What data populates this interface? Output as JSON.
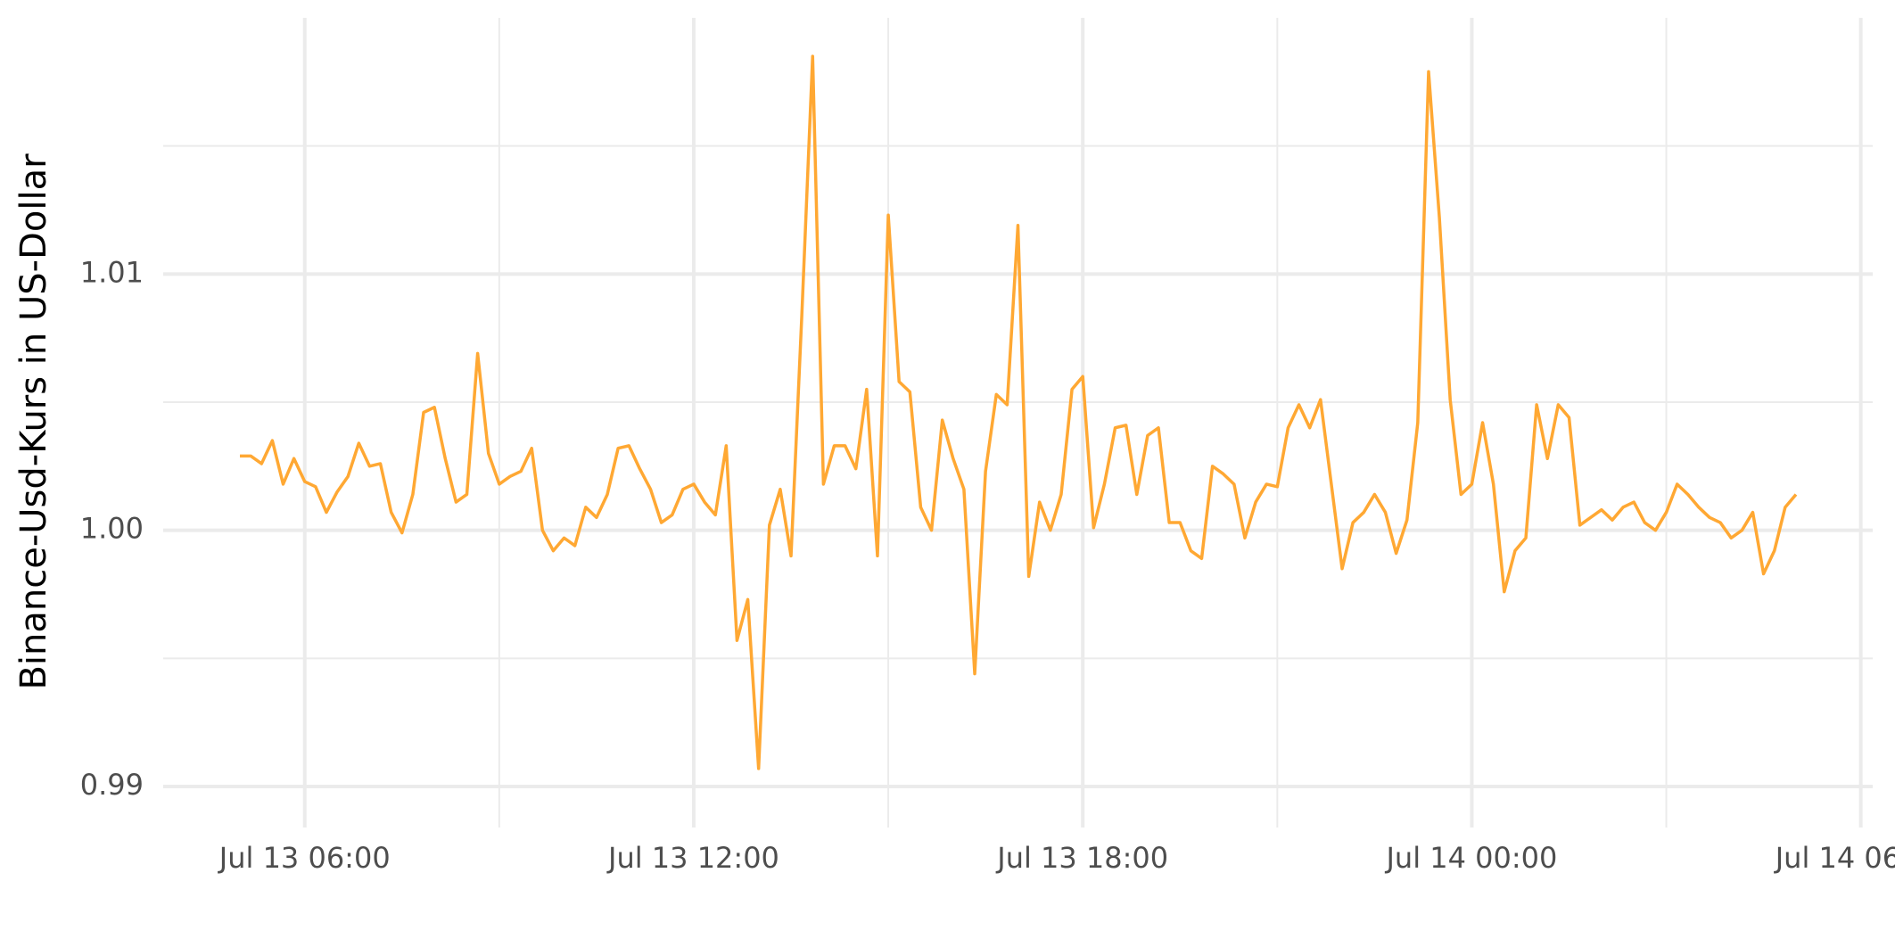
{
  "chart_data": {
    "type": "line",
    "y_label": "Binance-Usd-Kurs in US-Dollar",
    "x": [
      "Jul 13 05:00",
      "Jul 13 05:10",
      "Jul 13 05:20",
      "Jul 13 05:30",
      "Jul 13 05:40",
      "Jul 13 05:50",
      "Jul 13 06:00",
      "Jul 13 06:10",
      "Jul 13 06:20",
      "Jul 13 06:30",
      "Jul 13 06:40",
      "Jul 13 06:50",
      "Jul 13 07:00",
      "Jul 13 07:10",
      "Jul 13 07:20",
      "Jul 13 07:30",
      "Jul 13 07:40",
      "Jul 13 07:50",
      "Jul 13 08:00",
      "Jul 13 08:10",
      "Jul 13 08:20",
      "Jul 13 08:30",
      "Jul 13 08:40",
      "Jul 13 08:50",
      "Jul 13 09:00",
      "Jul 13 09:10",
      "Jul 13 09:20",
      "Jul 13 09:30",
      "Jul 13 09:40",
      "Jul 13 09:50",
      "Jul 13 10:00",
      "Jul 13 10:10",
      "Jul 13 10:20",
      "Jul 13 10:30",
      "Jul 13 10:40",
      "Jul 13 10:50",
      "Jul 13 11:00",
      "Jul 13 11:10",
      "Jul 13 11:20",
      "Jul 13 11:30",
      "Jul 13 11:40",
      "Jul 13 11:50",
      "Jul 13 12:00",
      "Jul 13 12:10",
      "Jul 13 12:20",
      "Jul 13 12:30",
      "Jul 13 12:40",
      "Jul 13 12:50",
      "Jul 13 13:00",
      "Jul 13 13:10",
      "Jul 13 13:20",
      "Jul 13 13:30",
      "Jul 13 13:40",
      "Jul 13 13:50",
      "Jul 13 14:00",
      "Jul 13 14:10",
      "Jul 13 14:20",
      "Jul 13 14:30",
      "Jul 13 14:40",
      "Jul 13 14:50",
      "Jul 13 15:00",
      "Jul 13 15:10",
      "Jul 13 15:20",
      "Jul 13 15:30",
      "Jul 13 15:40",
      "Jul 13 15:50",
      "Jul 13 16:00",
      "Jul 13 16:10",
      "Jul 13 16:20",
      "Jul 13 16:30",
      "Jul 13 16:40",
      "Jul 13 16:50",
      "Jul 13 17:00",
      "Jul 13 17:10",
      "Jul 13 17:20",
      "Jul 13 17:30",
      "Jul 13 17:40",
      "Jul 13 17:50",
      "Jul 13 18:00",
      "Jul 13 18:10",
      "Jul 13 18:20",
      "Jul 13 18:30",
      "Jul 13 18:40",
      "Jul 13 18:50",
      "Jul 13 19:00",
      "Jul 13 19:10",
      "Jul 13 19:20",
      "Jul 13 19:30",
      "Jul 13 19:40",
      "Jul 13 19:50",
      "Jul 13 20:00",
      "Jul 13 20:10",
      "Jul 13 20:20",
      "Jul 13 20:30",
      "Jul 13 20:40",
      "Jul 13 20:50",
      "Jul 13 21:00",
      "Jul 13 21:10",
      "Jul 13 21:20",
      "Jul 13 21:30",
      "Jul 13 21:40",
      "Jul 13 21:50",
      "Jul 13 22:00",
      "Jul 13 22:10",
      "Jul 13 22:20",
      "Jul 13 22:30",
      "Jul 13 22:40",
      "Jul 13 22:50",
      "Jul 13 23:00",
      "Jul 13 23:10",
      "Jul 13 23:20",
      "Jul 13 23:30",
      "Jul 13 23:40",
      "Jul 13 23:50",
      "Jul 14 00:00",
      "Jul 14 00:10",
      "Jul 14 00:20",
      "Jul 14 00:30",
      "Jul 14 00:40",
      "Jul 14 00:50",
      "Jul 14 01:00",
      "Jul 14 01:10",
      "Jul 14 01:20",
      "Jul 14 01:30",
      "Jul 14 01:40",
      "Jul 14 01:50",
      "Jul 14 02:00",
      "Jul 14 02:10",
      "Jul 14 02:20",
      "Jul 14 02:30",
      "Jul 14 02:40",
      "Jul 14 02:50",
      "Jul 14 03:00",
      "Jul 14 03:10",
      "Jul 14 03:20",
      "Jul 14 03:30",
      "Jul 14 03:40",
      "Jul 14 03:50",
      "Jul 14 04:00",
      "Jul 14 04:10",
      "Jul 14 04:20",
      "Jul 14 04:30",
      "Jul 14 04:40",
      "Jul 14 04:50",
      "Jul 14 05:00"
    ],
    "series": [
      {
        "name": "Binance USD",
        "color": "#ffa833",
        "values": [
          1.0029,
          1.0029,
          1.0026,
          1.0035,
          1.0018,
          1.0028,
          1.0019,
          1.0017,
          1.0007,
          1.0015,
          1.0021,
          1.0034,
          1.0025,
          1.0026,
          1.0007,
          0.9999,
          1.0014,
          1.0046,
          1.0048,
          1.0028,
          1.0011,
          1.0014,
          1.0069,
          1.003,
          1.0018,
          1.0021,
          1.0023,
          1.0032,
          1.0,
          0.9992,
          0.9997,
          0.9994,
          1.0009,
          1.0005,
          1.0014,
          1.0032,
          1.0033,
          1.0024,
          1.0016,
          1.0003,
          1.0006,
          1.0016,
          1.0018,
          1.0011,
          1.0006,
          1.0033,
          0.9957,
          0.9973,
          0.9907,
          1.0002,
          1.0016,
          0.999,
          1.0084,
          1.0185,
          1.0018,
          1.0033,
          1.0033,
          1.0024,
          1.0055,
          0.999,
          1.0123,
          1.0058,
          1.0054,
          1.0009,
          1.0,
          1.0043,
          1.0028,
          1.0016,
          0.9944,
          1.0023,
          1.0053,
          1.0049,
          1.0119,
          0.9982,
          1.0011,
          1.0,
          1.0014,
          1.0055,
          1.006,
          1.0001,
          1.0018,
          1.004,
          1.0041,
          1.0014,
          1.0037,
          1.004,
          1.0003,
          1.0003,
          0.9992,
          0.9989,
          1.0025,
          1.0022,
          1.0018,
          0.9997,
          1.0011,
          1.0018,
          1.0017,
          1.004,
          1.0049,
          1.004,
          1.0051,
          1.0018,
          0.9985,
          1.0003,
          1.0007,
          1.0014,
          1.0007,
          0.9991,
          1.0004,
          1.0042,
          1.0179,
          1.0122,
          1.0051,
          1.0014,
          1.0018,
          1.0042,
          1.0018,
          0.9976,
          0.9992,
          0.9997,
          1.0049,
          1.0028,
          1.0049,
          1.0044,
          1.0002,
          1.0005,
          1.0008,
          1.0004,
          1.0009,
          1.0011,
          1.0003,
          1.0,
          1.0007,
          1.0018,
          1.0014,
          1.0009,
          1.0005,
          1.0003,
          0.9997,
          1.0,
          1.0007,
          0.9983,
          0.9992,
          1.0009,
          1.0014
        ]
      }
    ],
    "xlim": [
      "Jul 13 03:49",
      "Jul 14 06:11"
    ],
    "xticks": [
      "Jul 13 06:00",
      "Jul 13 12:00",
      "Jul 13 18:00",
      "Jul 14 00:00",
      "Jul 14 06:00"
    ],
    "x_minor_grid": [
      "Jul 13 09:00",
      "Jul 13 15:00",
      "Jul 13 21:00",
      "Jul 14 03:00"
    ],
    "ylim": [
      0.9884,
      1.02
    ],
    "yticks": [
      0.99,
      {
        "value": 1,
        "label": "1.00"
      },
      1.01
    ],
    "y_minor_grid": [
      0.995,
      1.005,
      1.015
    ],
    "grid": true
  }
}
